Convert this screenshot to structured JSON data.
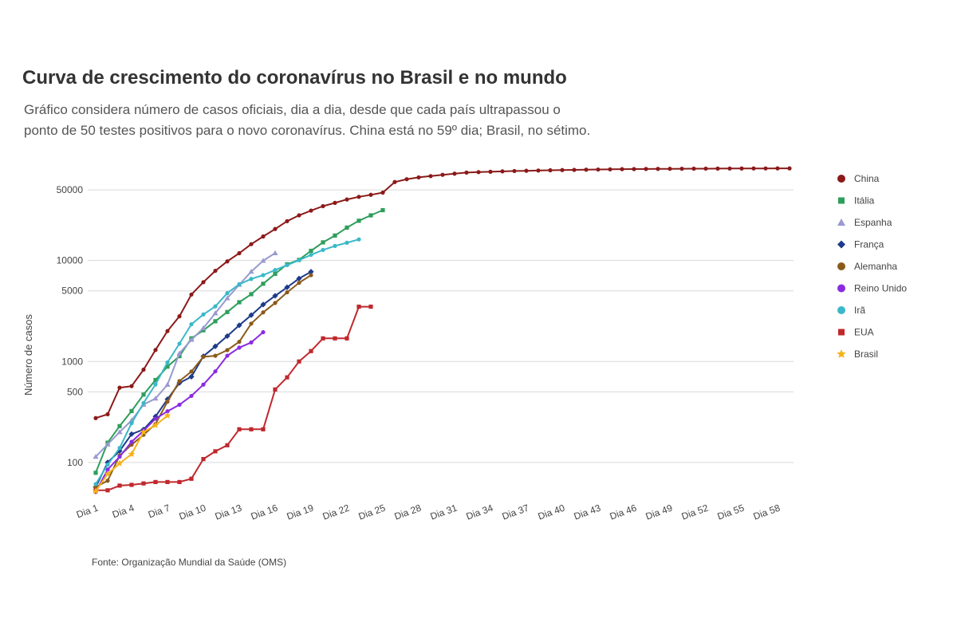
{
  "title": "Curva de crescimento do coronavírus no Brasil e no mundo",
  "subtitle_line1": "Gráfico considera número de casos oficiais, dia a dia, desde que cada país ultrapassou o",
  "subtitle_line2": "ponto de 50 testes positivos para o novo coronavírus. China está no 59º dia; Brasil, no sétimo.",
  "source": "Fonte: Organização Mundial da Saúde (OMS)",
  "chart_data": {
    "type": "line",
    "title": "Curva de crescimento do coronavírus no Brasil e no mundo",
    "xlabel": "",
    "ylabel": "Número de casos",
    "y_scale": "log",
    "ylim": [
      50,
      100000
    ],
    "y_ticks": [
      100,
      500,
      1000,
      5000,
      10000,
      50000
    ],
    "x_tick_labels": [
      "Dia 1",
      "Dia 4",
      "Dia 7",
      "Dia 10",
      "Dia 13",
      "Dia 16",
      "Dia 19",
      "Dia 22",
      "Dia 25",
      "Dia 28",
      "Dia 31",
      "Dia 34",
      "Dia 37",
      "Dia 40",
      "Dia 43",
      "Dia 46",
      "Dia 49",
      "Dia 52",
      "Dia 55",
      "Dia 58"
    ],
    "x_tick_days": [
      1,
      4,
      7,
      10,
      13,
      16,
      19,
      22,
      25,
      28,
      31,
      34,
      37,
      40,
      43,
      46,
      49,
      52,
      55,
      58
    ],
    "xlim": [
      1,
      59
    ],
    "grid": true,
    "legend_position": "right",
    "series": [
      {
        "name": "China",
        "color": "#8b1a1a",
        "marker": "circle",
        "values": [
          275,
          300,
          550,
          570,
          830,
          1300,
          2000,
          2800,
          4600,
          6100,
          7900,
          9800,
          11800,
          14500,
          17300,
          20500,
          24500,
          28000,
          31200,
          34500,
          37200,
          40200,
          42700,
          44700,
          47000,
          59800,
          63800,
          66500,
          68500,
          70500,
          72400,
          74200,
          75000,
          75600,
          76300,
          76900,
          77300,
          77800,
          78200,
          78600,
          78900,
          79300,
          79600,
          79900,
          80200,
          80400,
          80600,
          80800,
          80900,
          81000,
          81100,
          81200,
          81300,
          81400,
          81500,
          81550,
          81600,
          81650,
          81700
        ]
      },
      {
        "name": "Itália",
        "color": "#2e9e5b",
        "marker": "square",
        "values": [
          79,
          157,
          229,
          323,
          470,
          655,
          889,
          1128,
          1694,
          2036,
          2502,
          3089,
          3858,
          4636,
          5883,
          7375,
          9172,
          10149,
          12462,
          15113,
          17660,
          21157,
          24747,
          27980,
          31506
        ]
      },
      {
        "name": "Espanha",
        "color": "#9a9ad0",
        "marker": "triangle",
        "values": [
          114,
          151,
          200,
          261,
          374,
          430,
          589,
          1204,
          1639,
          2140,
          3004,
          4231,
          5753,
          7753,
          9942,
          11826
        ]
      },
      {
        "name": "França",
        "color": "#1f3a8a",
        "marker": "diamond",
        "values": [
          57,
          100,
          130,
          191,
          212,
          285,
          423,
          613,
          706,
          1126,
          1412,
          1784,
          2281,
          2876,
          3661,
          4469,
          5423,
          6633,
          7730
        ]
      },
      {
        "name": "Alemanha",
        "color": "#8b5a1a",
        "marker": "circle",
        "values": [
          57,
          66,
          117,
          150,
          188,
          240,
          400,
          639,
          795,
          1112,
          1139,
          1296,
          1567,
          2369,
          3062,
          3795,
          4838,
          6012,
          7156
        ]
      },
      {
        "name": "Reino Unido",
        "color": "#8a2be2",
        "marker": "circle",
        "values": [
          51,
          85,
          114,
          160,
          206,
          271,
          321,
          373,
          456,
          590,
          798,
          1140,
          1372,
          1543,
          1950
        ]
      },
      {
        "name": "Irã",
        "color": "#3ab8c8",
        "marker": "circle",
        "values": [
          61,
          95,
          139,
          245,
          388,
          593,
          978,
          1501,
          2336,
          2922,
          3513,
          4747,
          5823,
          6566,
          7161,
          8042,
          9000,
          10075,
          11364,
          12729,
          13938,
          14991,
          16169
        ]
      },
      {
        "name": "EUA",
        "color": "#c0282d",
        "marker": "square",
        "values": [
          53,
          53,
          59,
          60,
          62,
          64,
          64,
          64,
          69,
          108,
          129,
          148,
          213,
          213,
          213,
          528,
          696,
          1000,
          1267,
          1693,
          1693,
          1693,
          3487,
          3487
        ]
      },
      {
        "name": "Brasil",
        "color": "#f5b21a",
        "marker": "star",
        "values": [
          52,
          77,
          98,
          121,
          200,
          234,
          291
        ]
      }
    ]
  }
}
